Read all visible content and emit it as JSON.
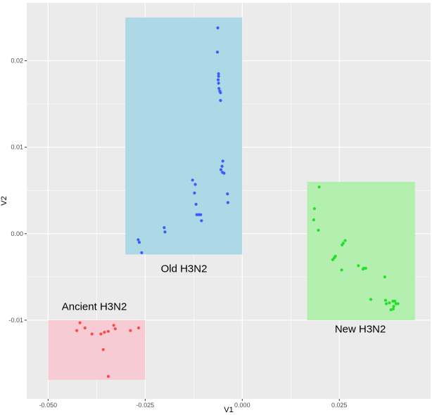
{
  "chart_data": {
    "type": "scatter",
    "xlabel": "V1",
    "ylabel": "V2",
    "xlim": [
      -0.0555,
      0.0485
    ],
    "ylim": [
      -0.0191,
      0.0267
    ],
    "x_ticks": [
      -0.05,
      -0.025,
      0.0,
      0.025
    ],
    "x_tick_labels": [
      "-0.050",
      "-0.025",
      "0.000",
      "0.025"
    ],
    "y_ticks": [
      -0.01,
      0.0,
      0.01,
      0.02
    ],
    "y_tick_labels": [
      "-0.01",
      "0.00",
      "0.01",
      "0.02"
    ],
    "grid": true,
    "panel_background": "#ebebeb",
    "grid_color": "#ffffff",
    "regions": [
      {
        "label": "Old H3N2",
        "xmin": -0.0301,
        "xmax": 0.0,
        "ymin": -0.0024,
        "ymax": 0.025,
        "fill": "#add8e6",
        "label_x": -0.015,
        "label_y": -0.0041
      },
      {
        "label": "New H3N2",
        "xmin": 0.0167,
        "xmax": 0.0445,
        "ymin": -0.01,
        "ymax": 0.006,
        "fill": "#b3f0b0",
        "label_x": 0.0304,
        "label_y": -0.0111
      },
      {
        "label": "Ancient H3N2",
        "xmin": -0.05,
        "xmax": -0.025,
        "ymin": -0.0169,
        "ymax": -0.01,
        "fill": "#f7cbd3",
        "label_x": -0.0381,
        "label_y": -0.0085
      }
    ],
    "series": [
      {
        "color": "#3b5bff",
        "points": [
          [
            -0.0063,
            0.0238
          ],
          [
            -0.0064,
            0.021
          ],
          [
            -0.0061,
            0.0185
          ],
          [
            -0.0061,
            0.0182
          ],
          [
            -0.0062,
            0.0178
          ],
          [
            -0.0061,
            0.0174
          ],
          [
            -0.006,
            0.0168
          ],
          [
            -0.0058,
            0.0165
          ],
          [
            -0.0056,
            0.0163
          ],
          [
            -0.0056,
            0.0154
          ],
          [
            -0.005,
            0.0084
          ],
          [
            -0.0052,
            0.0078
          ],
          [
            -0.0055,
            0.0074
          ],
          [
            -0.0051,
            0.0071
          ],
          [
            -0.0047,
            0.007
          ],
          [
            -0.0128,
            0.0062
          ],
          [
            -0.0121,
            0.0057
          ],
          [
            -0.0123,
            0.0047
          ],
          [
            -0.0119,
            0.0034
          ],
          [
            -0.0117,
            0.0022
          ],
          [
            -0.0112,
            0.0022
          ],
          [
            -0.0107,
            0.0022
          ],
          [
            -0.0105,
            0.0015
          ],
          [
            -0.0038,
            0.0046
          ],
          [
            -0.0037,
            0.0036
          ],
          [
            -0.0201,
            0.0007
          ],
          [
            -0.0199,
            0.0002
          ],
          [
            -0.0268,
            -0.0007
          ],
          [
            -0.0265,
            -0.001
          ],
          [
            -0.0259,
            -0.0022
          ]
        ]
      },
      {
        "color": "#22e022",
        "points": [
          [
            0.0198,
            0.0054
          ],
          [
            0.0186,
            0.0029
          ],
          [
            0.0184,
            0.0016
          ],
          [
            0.0196,
            0.0004
          ],
          [
            0.0265,
            -0.0008
          ],
          [
            0.026,
            -0.0011
          ],
          [
            0.0257,
            -0.0013
          ],
          [
            0.024,
            -0.0026
          ],
          [
            0.0237,
            -0.0028
          ],
          [
            0.0233,
            -0.003
          ],
          [
            0.0256,
            -0.0042
          ],
          [
            0.0299,
            -0.0037
          ],
          [
            0.0313,
            -0.004
          ],
          [
            0.0311,
            -0.0041
          ],
          [
            0.0318,
            -0.004
          ],
          [
            0.0367,
            -0.005
          ],
          [
            0.0331,
            -0.0076
          ],
          [
            0.0369,
            -0.0077
          ],
          [
            0.0379,
            -0.008
          ],
          [
            0.0371,
            -0.0081
          ],
          [
            0.0388,
            -0.0078
          ],
          [
            0.0393,
            -0.0078
          ],
          [
            0.0396,
            -0.0081
          ],
          [
            0.0401,
            -0.0081
          ],
          [
            0.039,
            -0.0084
          ],
          [
            0.0383,
            -0.0088
          ],
          [
            0.0389,
            -0.0087
          ]
        ]
      },
      {
        "color": "#ff4a4a",
        "points": [
          [
            -0.0418,
            -0.0103
          ],
          [
            -0.0426,
            -0.0112
          ],
          [
            -0.0405,
            -0.0109
          ],
          [
            -0.0387,
            -0.0116
          ],
          [
            -0.0364,
            -0.0116
          ],
          [
            -0.0355,
            -0.0114
          ],
          [
            -0.0345,
            -0.0113
          ],
          [
            -0.0327,
            -0.011
          ],
          [
            -0.0331,
            -0.0106
          ],
          [
            -0.0288,
            -0.0112
          ],
          [
            -0.0267,
            -0.0109
          ],
          [
            -0.0358,
            -0.0134
          ],
          [
            -0.0345,
            -0.0165
          ]
        ]
      }
    ]
  }
}
